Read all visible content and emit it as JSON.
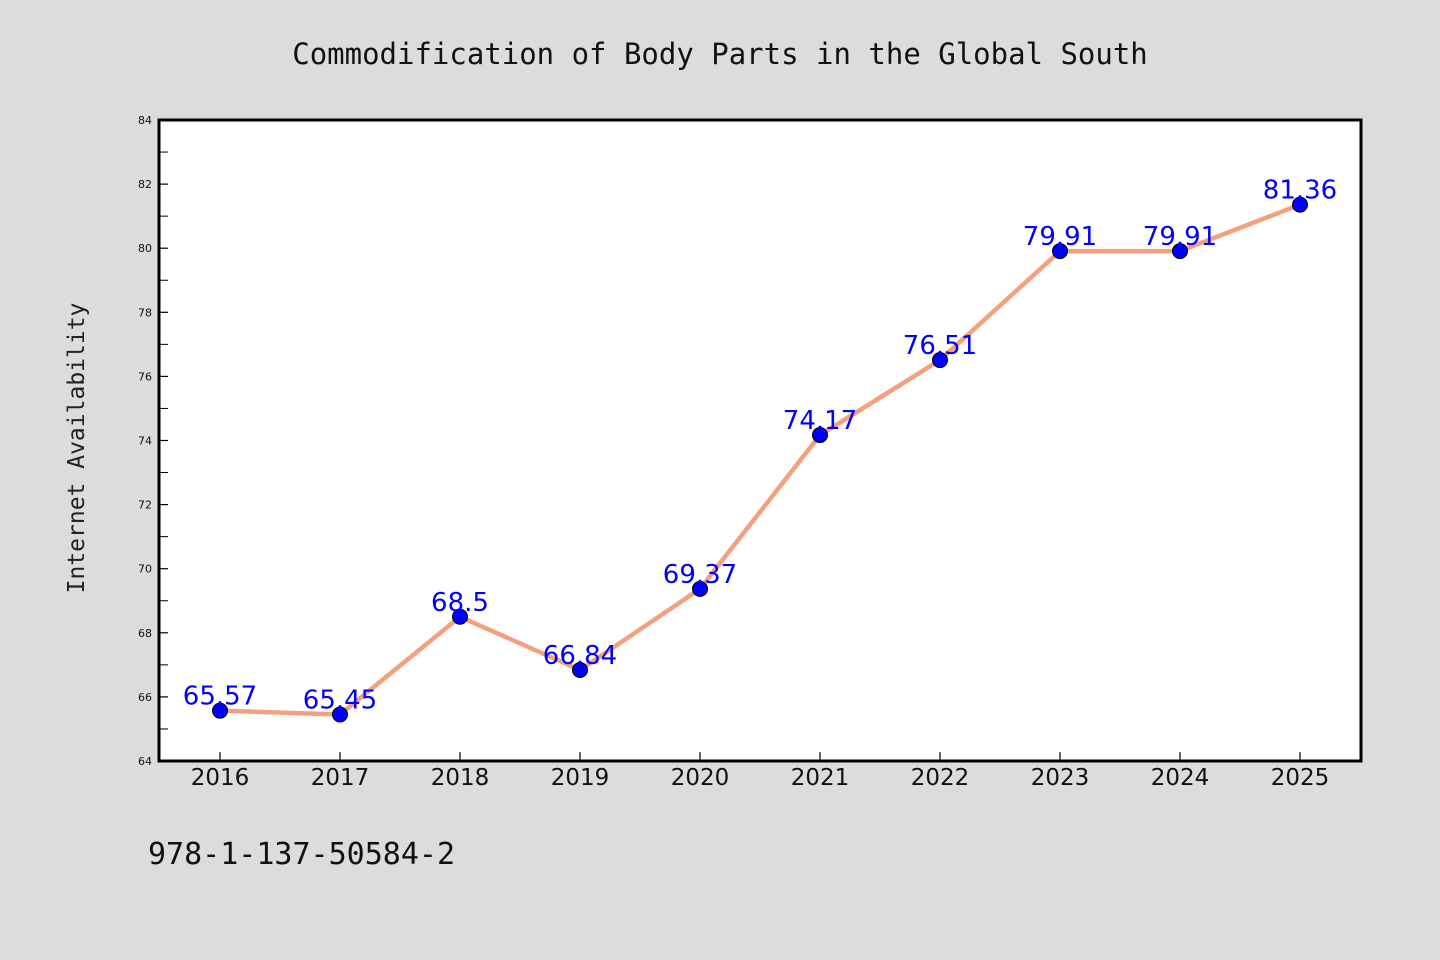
{
  "footnote": "978-1-137-50584-2",
  "colors": {
    "line": "#f4a07e",
    "marker": "#0000ff",
    "label": "#0000ff",
    "figure_bg": "#dcdcdc",
    "plot_bg": "#ffffff"
  },
  "chart_data": {
    "type": "line",
    "title": "Commodification of Body Parts in the Global South",
    "xlabel": "",
    "ylabel": "Internet Availability",
    "categories": [
      "2016",
      "2017",
      "2018",
      "2019",
      "2020",
      "2021",
      "2022",
      "2023",
      "2024",
      "2025"
    ],
    "series": [
      {
        "values": [
          65.57,
          65.45,
          68.5,
          66.84,
          69.37,
          74.17,
          76.51,
          79.91,
          79.91,
          81.36
        ]
      }
    ],
    "data_labels": [
      "65.57",
      "65.45",
      "68.5",
      "66.84",
      "69.37",
      "74.17",
      "76.51",
      "79.91",
      "79.91",
      "81.36"
    ],
    "ylim": [
      64,
      84
    ],
    "yticks": [
      64,
      66,
      68,
      70,
      72,
      74,
      76,
      78,
      80,
      82,
      84
    ],
    "ytick_labels": [
      "64",
      "66",
      "68",
      "70",
      "72",
      "74",
      "76",
      "78",
      "80",
      "82",
      "84"
    ],
    "grid": false,
    "legend": "none"
  }
}
